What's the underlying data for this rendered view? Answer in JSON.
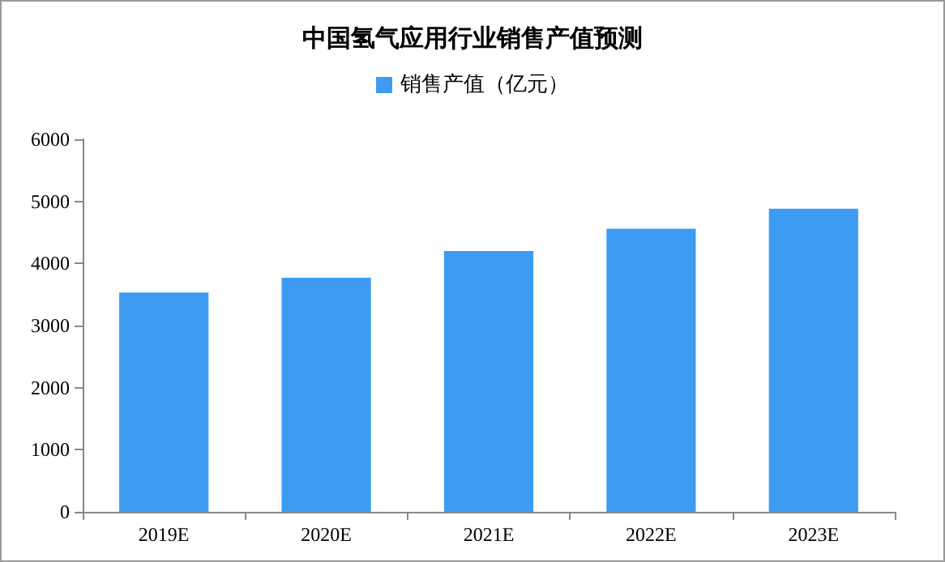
{
  "chart_data": {
    "type": "bar",
    "title": "中国氢气应用行业销售产值预测",
    "categories": [
      "2019E",
      "2020E",
      "2021E",
      "2022E",
      "2023E"
    ],
    "series": [
      {
        "name": "销售产值（亿元）",
        "color": "#3d9cf2",
        "values": [
          3530,
          3770,
          4200,
          4560,
          4880
        ]
      }
    ],
    "ylim": [
      0,
      6000
    ],
    "yticks": [
      0,
      1000,
      2000,
      3000,
      4000,
      5000,
      6000
    ],
    "grid": false,
    "legend": "top"
  }
}
